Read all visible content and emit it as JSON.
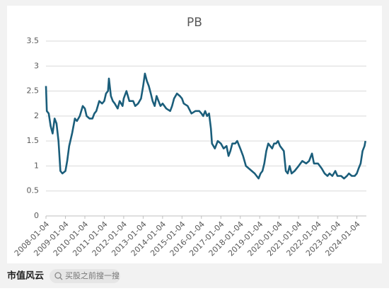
{
  "chart_data": {
    "type": "line",
    "title": "PB",
    "x": [
      "2008-01-04",
      "2008-01-20",
      "2008-02-25",
      "2008-04-01",
      "2008-05-08",
      "2008-06-14",
      "2008-07-20",
      "2008-08-26",
      "2008-10-01",
      "2008-11-07",
      "2009-01-04",
      "2009-02-06",
      "2009-03-15",
      "2009-05-08",
      "2009-07-01",
      "2009-08-08",
      "2009-10-01",
      "2009-11-25",
      "2010-01-04",
      "2010-02-06",
      "2010-04-01",
      "2010-05-27",
      "2010-07-01",
      "2010-08-08",
      "2010-10-01",
      "2010-11-25",
      "2011-01-04",
      "2011-02-06",
      "2011-03-15",
      "2011-04-01",
      "2011-05-08",
      "2011-06-14",
      "2011-07-20",
      "2011-09-13",
      "2011-10-20",
      "2011-12-14",
      "2012-01-04",
      "2012-02-25",
      "2012-04-20",
      "2012-07-01",
      "2012-08-08",
      "2012-10-01",
      "2012-11-25",
      "2013-01-04",
      "2013-02-06",
      "2013-03-15",
      "2013-04-20",
      "2013-05-27",
      "2013-07-01",
      "2013-08-08",
      "2013-09-13",
      "2013-10-20",
      "2013-11-25",
      "2014-01-04",
      "2014-03-15",
      "2014-05-27",
      "2014-07-01",
      "2014-08-08",
      "2014-10-01",
      "2014-11-25",
      "2015-01-04",
      "2015-02-06",
      "2015-04-20",
      "2015-07-01",
      "2015-09-13",
      "2015-11-25",
      "2016-01-04",
      "2016-02-06",
      "2016-03-15",
      "2016-04-20",
      "2016-05-27",
      "2016-07-01",
      "2016-07-20",
      "2016-09-13",
      "2016-11-07",
      "2017-01-04",
      "2017-02-25",
      "2017-04-20",
      "2017-05-27",
      "2017-07-01",
      "2017-08-08",
      "2017-10-01",
      "2017-11-07",
      "2018-01-04",
      "2018-02-25",
      "2018-04-20",
      "2018-06-14",
      "2018-08-08",
      "2018-10-01",
      "2018-11-07",
      "2018-12-14",
      "2019-01-20",
      "2019-02-25",
      "2019-04-01",
      "2019-05-08",
      "2019-06-14",
      "2019-07-20",
      "2019-08-26",
      "2019-10-01",
      "2019-11-07",
      "2019-12-14",
      "2020-01-20",
      "2020-02-25",
      "2020-04-01",
      "2020-05-08",
      "2020-06-14",
      "2020-07-20",
      "2020-08-26",
      "2020-10-20",
      "2021-01-04",
      "2021-03-15",
      "2021-05-27",
      "2021-07-20",
      "2021-09-13",
      "2021-10-20",
      "2022-01-04",
      "2022-03-15",
      "2022-05-08",
      "2022-07-01",
      "2022-08-08",
      "2022-10-01",
      "2022-11-25",
      "2023-01-04",
      "2023-03-15",
      "2023-05-08",
      "2023-07-01",
      "2023-08-08",
      "2023-10-01",
      "2023-11-25",
      "2024-01-04",
      "2024-02-06",
      "2024-03-15",
      "2024-04-20",
      "2024-05-27",
      "2024-06-14"
    ],
    "series": [
      {
        "name": "PB",
        "color": "#1b5e7b",
        "values": [
          2.6,
          2.1,
          2.05,
          1.8,
          1.65,
          1.95,
          1.85,
          1.5,
          0.9,
          0.85,
          0.9,
          1.1,
          1.4,
          1.65,
          1.95,
          1.9,
          2.0,
          2.2,
          2.15,
          2.0,
          1.95,
          1.95,
          2.05,
          2.1,
          2.3,
          2.25,
          2.3,
          2.45,
          2.5,
          2.75,
          2.4,
          2.3,
          2.25,
          2.15,
          2.3,
          2.2,
          2.35,
          2.5,
          2.3,
          2.3,
          2.2,
          2.25,
          2.35,
          2.6,
          2.85,
          2.7,
          2.6,
          2.45,
          2.3,
          2.2,
          2.4,
          2.3,
          2.2,
          2.25,
          2.15,
          2.1,
          2.2,
          2.35,
          2.45,
          2.4,
          2.35,
          2.25,
          2.2,
          2.05,
          2.1,
          2.1,
          2.05,
          2.0,
          2.1,
          2.0,
          2.05,
          1.75,
          1.45,
          1.35,
          1.5,
          1.45,
          1.35,
          1.4,
          1.2,
          1.3,
          1.45,
          1.45,
          1.5,
          1.35,
          1.2,
          1.0,
          0.95,
          0.9,
          0.85,
          0.8,
          0.75,
          0.85,
          0.9,
          1.05,
          1.3,
          1.45,
          1.4,
          1.35,
          1.45,
          1.45,
          1.5,
          1.4,
          1.35,
          1.3,
          0.9,
          0.85,
          1.0,
          0.85,
          0.9,
          1.0,
          1.1,
          1.05,
          1.1,
          1.25,
          1.05,
          1.05,
          0.95,
          0.85,
          0.8,
          0.85,
          0.8,
          0.9,
          0.8,
          0.8,
          0.75,
          0.8,
          0.85,
          0.8,
          0.8,
          0.85,
          0.95,
          1.05,
          1.3,
          1.4,
          1.5
        ]
      }
    ],
    "xlim": [
      "2008-01-04",
      "2024-07-01"
    ],
    "xticks": [
      "2008-01-04",
      "2009-01-04",
      "2010-01-04",
      "2011-01-04",
      "2012-01-04",
      "2013-01-04",
      "2014-01-04",
      "2015-01-04",
      "2016-01-04",
      "2017-01-04",
      "2018-01-04",
      "2019-01-04",
      "2020-01-04",
      "2021-01-04",
      "2022-01-04",
      "2023-01-04",
      "2024-01-04"
    ],
    "ylim": [
      0,
      3.5
    ],
    "yticks": [
      0,
      0.5,
      1,
      1.5,
      2,
      2.5,
      3,
      3.5
    ],
    "grid": true
  },
  "footer": {
    "logo": "市值风云",
    "search": "买股之前搜一搜"
  }
}
